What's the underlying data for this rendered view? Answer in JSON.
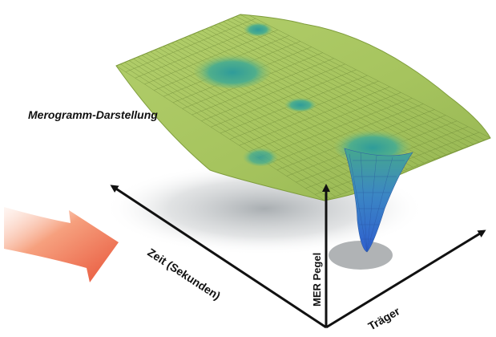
{
  "title": "Merogramm-Darstellung",
  "axes": {
    "time_label": "Zeit (Sekunden)",
    "level_label": "MER Pegel",
    "carrier_label": "Träger"
  },
  "colors": {
    "surface_green": "#a9c862",
    "surface_dark": "#7f9d3c",
    "dip_teal": "#3fa597",
    "dip_blue": "#3a6fd0",
    "arrow_orange": "#f07a4e",
    "axis": "#111111"
  }
}
